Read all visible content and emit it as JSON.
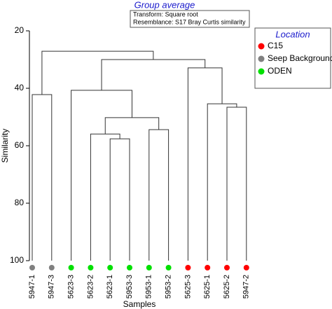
{
  "chart_data": {
    "type": "dendrogram",
    "title": "Group average",
    "subtitle_lines": [
      "Transform: Square root",
      "Resemblance: S17 Bray Curtis similarity"
    ],
    "y_label": "Similarity",
    "x_label": "Samples",
    "ylim": [
      20,
      100
    ],
    "y_inverted": true,
    "yticks": [
      20,
      40,
      60,
      80,
      100
    ],
    "legend_title": "Location",
    "series": [
      {
        "name": "C15",
        "color": "#ff0000"
      },
      {
        "name": "Seep Background",
        "color": "#808080"
      },
      {
        "name": "ODEN",
        "color": "#00e000"
      }
    ],
    "leaves": [
      {
        "label": "5947-1",
        "group": 1
      },
      {
        "label": "5947-3",
        "group": 1
      },
      {
        "label": "5623-3",
        "group": 2
      },
      {
        "label": "5623-2",
        "group": 2
      },
      {
        "label": "5623-1",
        "group": 2
      },
      {
        "label": "5953-3",
        "group": 2
      },
      {
        "label": "5953-1",
        "group": 2
      },
      {
        "label": "5953-2",
        "group": 2
      },
      {
        "label": "5625-3",
        "group": 0
      },
      {
        "label": "5625-1",
        "group": 0
      },
      {
        "label": "5625-2",
        "group": 0
      },
      {
        "label": "5947-2",
        "group": 0
      }
    ],
    "merges": [
      {
        "children": [
          4,
          5
        ],
        "height": 57.6
      },
      {
        "children": [
          3,
          12
        ],
        "height": 55.9
      },
      {
        "children": [
          6,
          7
        ],
        "height": 54.4
      },
      {
        "children": [
          13,
          14
        ],
        "height": 50.2
      },
      {
        "children": [
          2,
          15
        ],
        "height": 40.7
      },
      {
        "children": [
          10,
          11
        ],
        "height": 46.6
      },
      {
        "children": [
          9,
          17
        ],
        "height": 45.4
      },
      {
        "children": [
          8,
          18
        ],
        "height": 32.9
      },
      {
        "children": [
          16,
          19
        ],
        "height": 30.0
      },
      {
        "children": [
          0,
          1
        ],
        "height": 42.2
      },
      {
        "children": [
          21,
          20
        ],
        "height": 27.1
      }
    ]
  }
}
